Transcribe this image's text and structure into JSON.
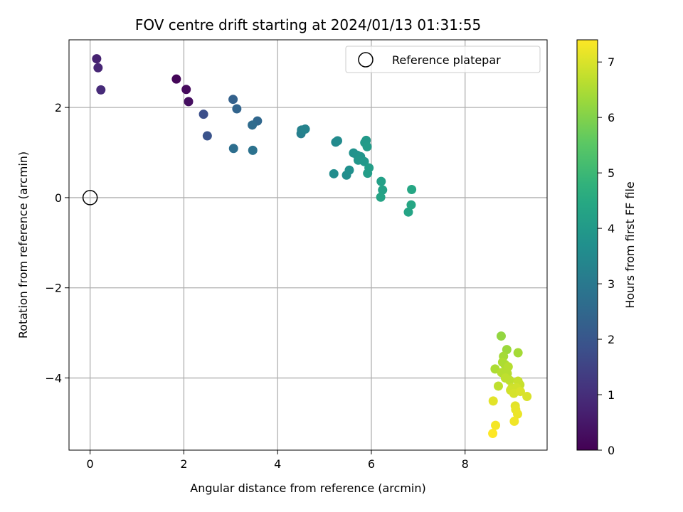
{
  "chart_data": {
    "type": "scatter",
    "title": "FOV centre drift starting at 2024/01/13 01:31:55",
    "xlabel": "Angular distance from reference (arcmin)",
    "ylabel": "Rotation from reference (arcmin)",
    "xlim": [
      -0.45,
      9.75
    ],
    "ylim": [
      -5.6,
      3.5
    ],
    "xticks": [
      0,
      2,
      4,
      6,
      8
    ],
    "yticks": [
      -4,
      -2,
      0,
      2
    ],
    "xtick_labels": [
      "0",
      "2",
      "4",
      "6",
      "8"
    ],
    "ytick_labels": [
      "−4",
      "−2",
      "0",
      "2"
    ],
    "grid": true,
    "legend": {
      "placement": "top-right",
      "entries": [
        "Reference platepar"
      ]
    },
    "reference_point": {
      "x": 0,
      "y": 0,
      "label": "Reference platepar"
    },
    "colorbar": {
      "label": "Hours from first FF file",
      "range": [
        0,
        7.4
      ],
      "ticks": [
        0,
        1,
        2,
        3,
        4,
        5,
        6,
        7
      ],
      "colormap": "viridis"
    },
    "points": [
      {
        "x": 1.84,
        "y": 2.63,
        "t": 0.1
      },
      {
        "x": 2.05,
        "y": 2.4,
        "t": 0.2
      },
      {
        "x": 2.1,
        "y": 2.13,
        "t": 0.3
      },
      {
        "x": 0.14,
        "y": 3.08,
        "t": 0.7
      },
      {
        "x": 0.17,
        "y": 2.88,
        "t": 0.8
      },
      {
        "x": 0.23,
        "y": 2.39,
        "t": 0.9
      },
      {
        "x": 2.42,
        "y": 1.85,
        "t": 1.8
      },
      {
        "x": 2.5,
        "y": 1.37,
        "t": 1.9
      },
      {
        "x": 3.05,
        "y": 2.18,
        "t": 2.3
      },
      {
        "x": 3.13,
        "y": 1.97,
        "t": 2.4
      },
      {
        "x": 3.57,
        "y": 1.7,
        "t": 2.5
      },
      {
        "x": 3.46,
        "y": 1.61,
        "t": 2.6
      },
      {
        "x": 3.06,
        "y": 1.09,
        "t": 2.7
      },
      {
        "x": 3.47,
        "y": 1.05,
        "t": 2.8
      },
      {
        "x": 4.5,
        "y": 1.42,
        "t": 3.2
      },
      {
        "x": 4.51,
        "y": 1.5,
        "t": 3.25
      },
      {
        "x": 4.59,
        "y": 1.52,
        "t": 3.3
      },
      {
        "x": 5.24,
        "y": 1.23,
        "t": 3.5
      },
      {
        "x": 5.28,
        "y": 1.26,
        "t": 3.55
      },
      {
        "x": 5.2,
        "y": 0.53,
        "t": 3.6
      },
      {
        "x": 5.47,
        "y": 0.5,
        "t": 3.65
      },
      {
        "x": 5.53,
        "y": 0.61,
        "t": 3.7
      },
      {
        "x": 5.62,
        "y": 0.99,
        "t": 3.75
      },
      {
        "x": 5.7,
        "y": 0.94,
        "t": 3.8
      },
      {
        "x": 5.77,
        "y": 0.91,
        "t": 3.85
      },
      {
        "x": 5.72,
        "y": 0.83,
        "t": 3.9
      },
      {
        "x": 5.85,
        "y": 0.8,
        "t": 3.95
      },
      {
        "x": 5.86,
        "y": 1.22,
        "t": 4.0
      },
      {
        "x": 5.89,
        "y": 1.27,
        "t": 4.0
      },
      {
        "x": 5.91,
        "y": 1.13,
        "t": 4.05
      },
      {
        "x": 5.92,
        "y": 0.54,
        "t": 4.1
      },
      {
        "x": 5.95,
        "y": 0.66,
        "t": 4.1
      },
      {
        "x": 6.21,
        "y": 0.36,
        "t": 4.2
      },
      {
        "x": 6.24,
        "y": 0.17,
        "t": 4.25
      },
      {
        "x": 6.2,
        "y": 0.01,
        "t": 4.3
      },
      {
        "x": 6.79,
        "y": -0.32,
        "t": 4.35
      },
      {
        "x": 6.85,
        "y": -0.16,
        "t": 4.4
      },
      {
        "x": 6.86,
        "y": 0.18,
        "t": 4.4
      },
      {
        "x": 8.77,
        "y": -3.07,
        "t": 6.2
      },
      {
        "x": 8.89,
        "y": -3.37,
        "t": 6.3
      },
      {
        "x": 8.82,
        "y": -3.52,
        "t": 6.4
      },
      {
        "x": 9.13,
        "y": -3.44,
        "t": 6.4
      },
      {
        "x": 8.64,
        "y": -3.8,
        "t": 6.5
      },
      {
        "x": 8.8,
        "y": -3.65,
        "t": 6.5
      },
      {
        "x": 8.85,
        "y": -3.7,
        "t": 6.5
      },
      {
        "x": 8.92,
        "y": -3.75,
        "t": 6.6
      },
      {
        "x": 8.78,
        "y": -3.88,
        "t": 6.6
      },
      {
        "x": 8.9,
        "y": -3.9,
        "t": 6.6
      },
      {
        "x": 8.86,
        "y": -4.0,
        "t": 6.7
      },
      {
        "x": 8.95,
        "y": -4.05,
        "t": 6.7
      },
      {
        "x": 8.71,
        "y": -4.18,
        "t": 6.7
      },
      {
        "x": 9.13,
        "y": -4.07,
        "t": 6.8
      },
      {
        "x": 9.17,
        "y": -4.15,
        "t": 6.8
      },
      {
        "x": 9.0,
        "y": -4.22,
        "t": 6.85
      },
      {
        "x": 8.97,
        "y": -4.27,
        "t": 6.9
      },
      {
        "x": 9.1,
        "y": -4.22,
        "t": 6.9
      },
      {
        "x": 9.04,
        "y": -4.34,
        "t": 6.95
      },
      {
        "x": 9.18,
        "y": -4.3,
        "t": 7.0
      },
      {
        "x": 9.32,
        "y": -4.41,
        "t": 7.0
      },
      {
        "x": 8.6,
        "y": -4.51,
        "t": 7.1
      },
      {
        "x": 9.07,
        "y": -4.62,
        "t": 7.1
      },
      {
        "x": 9.08,
        "y": -4.7,
        "t": 7.15
      },
      {
        "x": 9.12,
        "y": -4.8,
        "t": 7.2
      },
      {
        "x": 9.05,
        "y": -4.96,
        "t": 7.25
      },
      {
        "x": 8.65,
        "y": -5.05,
        "t": 7.3
      },
      {
        "x": 8.59,
        "y": -5.23,
        "t": 7.4
      }
    ]
  }
}
